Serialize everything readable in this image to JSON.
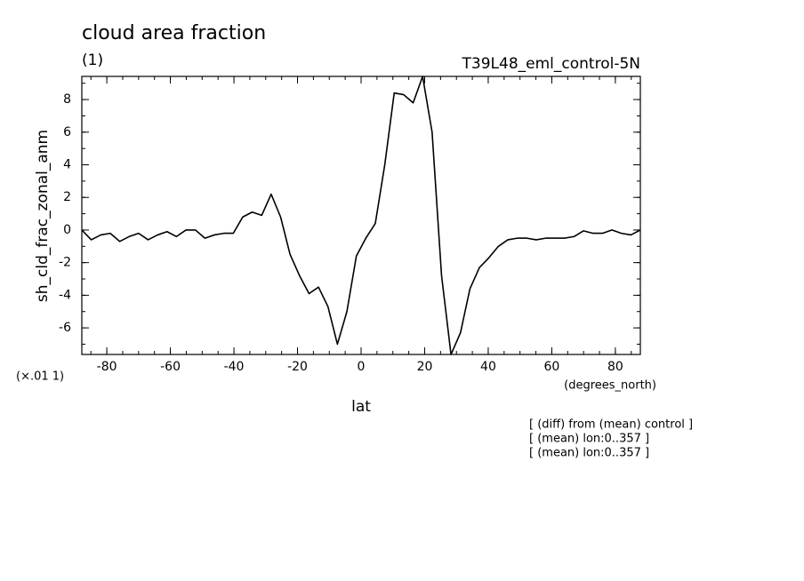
{
  "chart_data": {
    "type": "line",
    "title": "cloud area fraction",
    "subtitle": "(1)",
    "dataset": "T39L48_eml_control-5N",
    "y_label": "sh_cld_frac_zonal_anm",
    "y_scale_note": "(×.01 1)",
    "x_label": "lat",
    "x_units": "(degrees_north)",
    "notes": [
      "[ (diff) from (mean) control ]",
      "[ (mean) lon:0..357 ]",
      "[ (mean) lon:0..357 ]"
    ],
    "x": [
      -87.86,
      -84.88,
      -81.9,
      -78.92,
      -75.95,
      -72.97,
      -69.99,
      -67.01,
      -64.03,
      -61.05,
      -58.08,
      -55.1,
      -52.12,
      -49.14,
      -46.16,
      -43.19,
      -40.21,
      -37.23,
      -34.25,
      -31.27,
      -28.29,
      -25.32,
      -22.34,
      -19.36,
      -16.38,
      -13.4,
      -10.42,
      -7.45,
      -4.47,
      -1.49,
      1.49,
      4.47,
      7.45,
      10.42,
      13.4,
      16.38,
      19.36,
      22.34,
      25.32,
      28.29,
      31.27,
      34.25,
      37.23,
      40.21,
      43.19,
      46.16,
      49.14,
      52.12,
      55.1,
      58.08,
      61.05,
      64.03,
      67.01,
      69.99,
      72.97,
      75.95,
      78.92,
      81.9,
      84.88,
      87.86
    ],
    "series": [
      {
        "color": "#000000",
        "values": [
          0,
          -0.6,
          -0.3,
          -0.2,
          -0.7,
          -0.4,
          -0.2,
          -0.6,
          -0.3,
          -0.1,
          -0.4,
          0,
          0,
          -0.5,
          -0.3,
          -0.2,
          -0.2,
          0.8,
          1.1,
          0.9,
          2.2,
          0.8,
          -1.5,
          -2.8,
          -3.9,
          -3.5,
          -4.7,
          -7.0,
          -5.0,
          -1.6,
          -0.5,
          0.4,
          4.0,
          8.4,
          8.3,
          7.8,
          9.42,
          6.0,
          -2.8,
          -7.63,
          -6.3,
          -3.6,
          -2.3,
          -1.7,
          -1.0,
          -0.6,
          -0.5,
          -0.5,
          -0.6,
          -0.5,
          -0.5,
          -0.5,
          -0.4,
          -0.05,
          -0.2,
          -0.2,
          0,
          -0.2,
          -0.3,
          0
        ]
      }
    ],
    "xlim": [
      -87.86,
      87.86
    ],
    "ylim": [
      -7.63,
      9.42
    ],
    "xticks": [
      -80,
      -60,
      -40,
      -20,
      0,
      20,
      40,
      60,
      80
    ],
    "yticks": [
      -6,
      -4,
      -2,
      0,
      2,
      4,
      6,
      8
    ]
  }
}
